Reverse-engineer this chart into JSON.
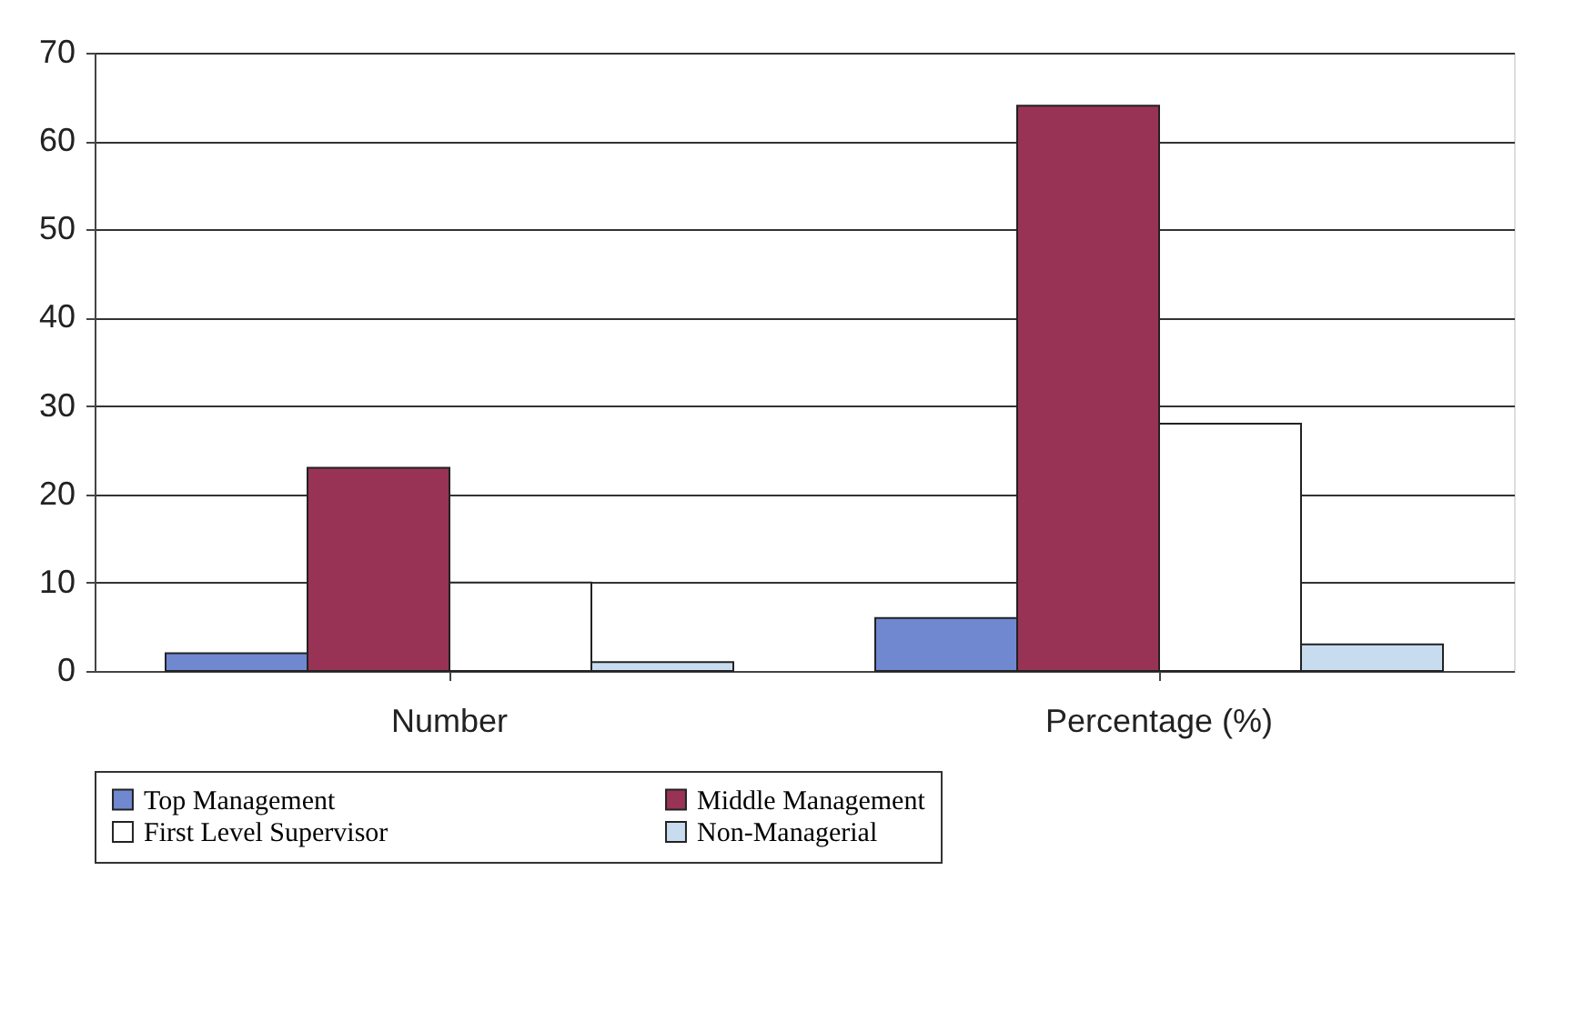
{
  "chart_data": {
    "type": "bar",
    "categories": [
      "Number",
      "Percentage (%)"
    ],
    "series": [
      {
        "name": "Top Management",
        "color": "#7088d0",
        "values": [
          2,
          6
        ]
      },
      {
        "name": "Middle Management",
        "color": "#993355",
        "values": [
          23,
          64
        ]
      },
      {
        "name": "First Level Supervisor",
        "color": "#ffffff",
        "values": [
          10,
          28
        ]
      },
      {
        "name": "Non-Managerial",
        "color": "#c8dcf0",
        "values": [
          1,
          3
        ]
      }
    ],
    "ylim": [
      0,
      70
    ],
    "yticks": [
      0,
      10,
      20,
      30,
      40,
      50,
      60,
      70
    ],
    "grid": "y",
    "legend": "bottom"
  }
}
